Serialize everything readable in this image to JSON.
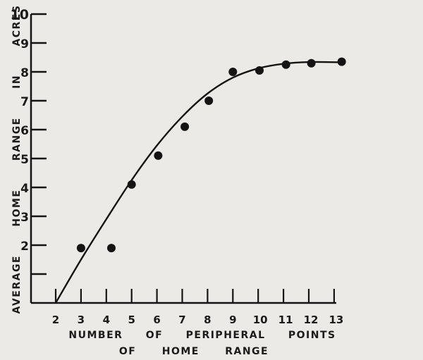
{
  "chart_data": {
    "type": "scatter",
    "title": "",
    "xlabel_line1": "NUMBER OF PERIPHERAL POINTS",
    "xlabel_line2": "OF HOME RANGE",
    "ylabel": "AVERAGE HOME RANGE IN ACRES",
    "xlim": [
      2,
      13.5
    ],
    "ylim": [
      0,
      10
    ],
    "x_ticks": [
      2,
      3,
      4,
      5,
      6,
      7,
      8,
      9,
      10,
      11,
      12,
      13
    ],
    "x_tick_labels": [
      "2",
      "3",
      "4",
      "5",
      "6",
      "7",
      "8",
      "9",
      "10",
      "11",
      "12",
      "13"
    ],
    "y_ticks": [
      1,
      2,
      3,
      4,
      5,
      6,
      7,
      8,
      9,
      10
    ],
    "y_tick_labels": [
      "",
      "2",
      "3",
      "4",
      "5",
      "6",
      "7",
      "8",
      "9",
      "10"
    ],
    "grid": false,
    "points": [
      {
        "x": 3.0,
        "y": 1.9
      },
      {
        "x": 4.2,
        "y": 1.9
      },
      {
        "x": 5.0,
        "y": 4.1
      },
      {
        "x": 6.05,
        "y": 5.1
      },
      {
        "x": 7.1,
        "y": 6.1
      },
      {
        "x": 8.05,
        "y": 7.0
      },
      {
        "x": 9.0,
        "y": 8.0
      },
      {
        "x": 10.05,
        "y": 8.05
      },
      {
        "x": 11.1,
        "y": 8.25
      },
      {
        "x": 12.1,
        "y": 8.3
      },
      {
        "x": 13.3,
        "y": 8.35
      }
    ],
    "fitted_curve": [
      {
        "x": 2.0,
        "y": 0
      },
      {
        "x": 3.0,
        "y": 1.5
      },
      {
        "x": 4.0,
        "y": 2.9
      },
      {
        "x": 5.0,
        "y": 4.25
      },
      {
        "x": 6.0,
        "y": 5.45
      },
      {
        "x": 7.0,
        "y": 6.45
      },
      {
        "x": 8.0,
        "y": 7.25
      },
      {
        "x": 9.0,
        "y": 7.8
      },
      {
        "x": 10.0,
        "y": 8.12
      },
      {
        "x": 11.0,
        "y": 8.28
      },
      {
        "x": 12.0,
        "y": 8.34
      },
      {
        "x": 13.3,
        "y": 8.33
      }
    ],
    "colors": {
      "ink": "#141414",
      "paper": "#eceae6"
    }
  }
}
